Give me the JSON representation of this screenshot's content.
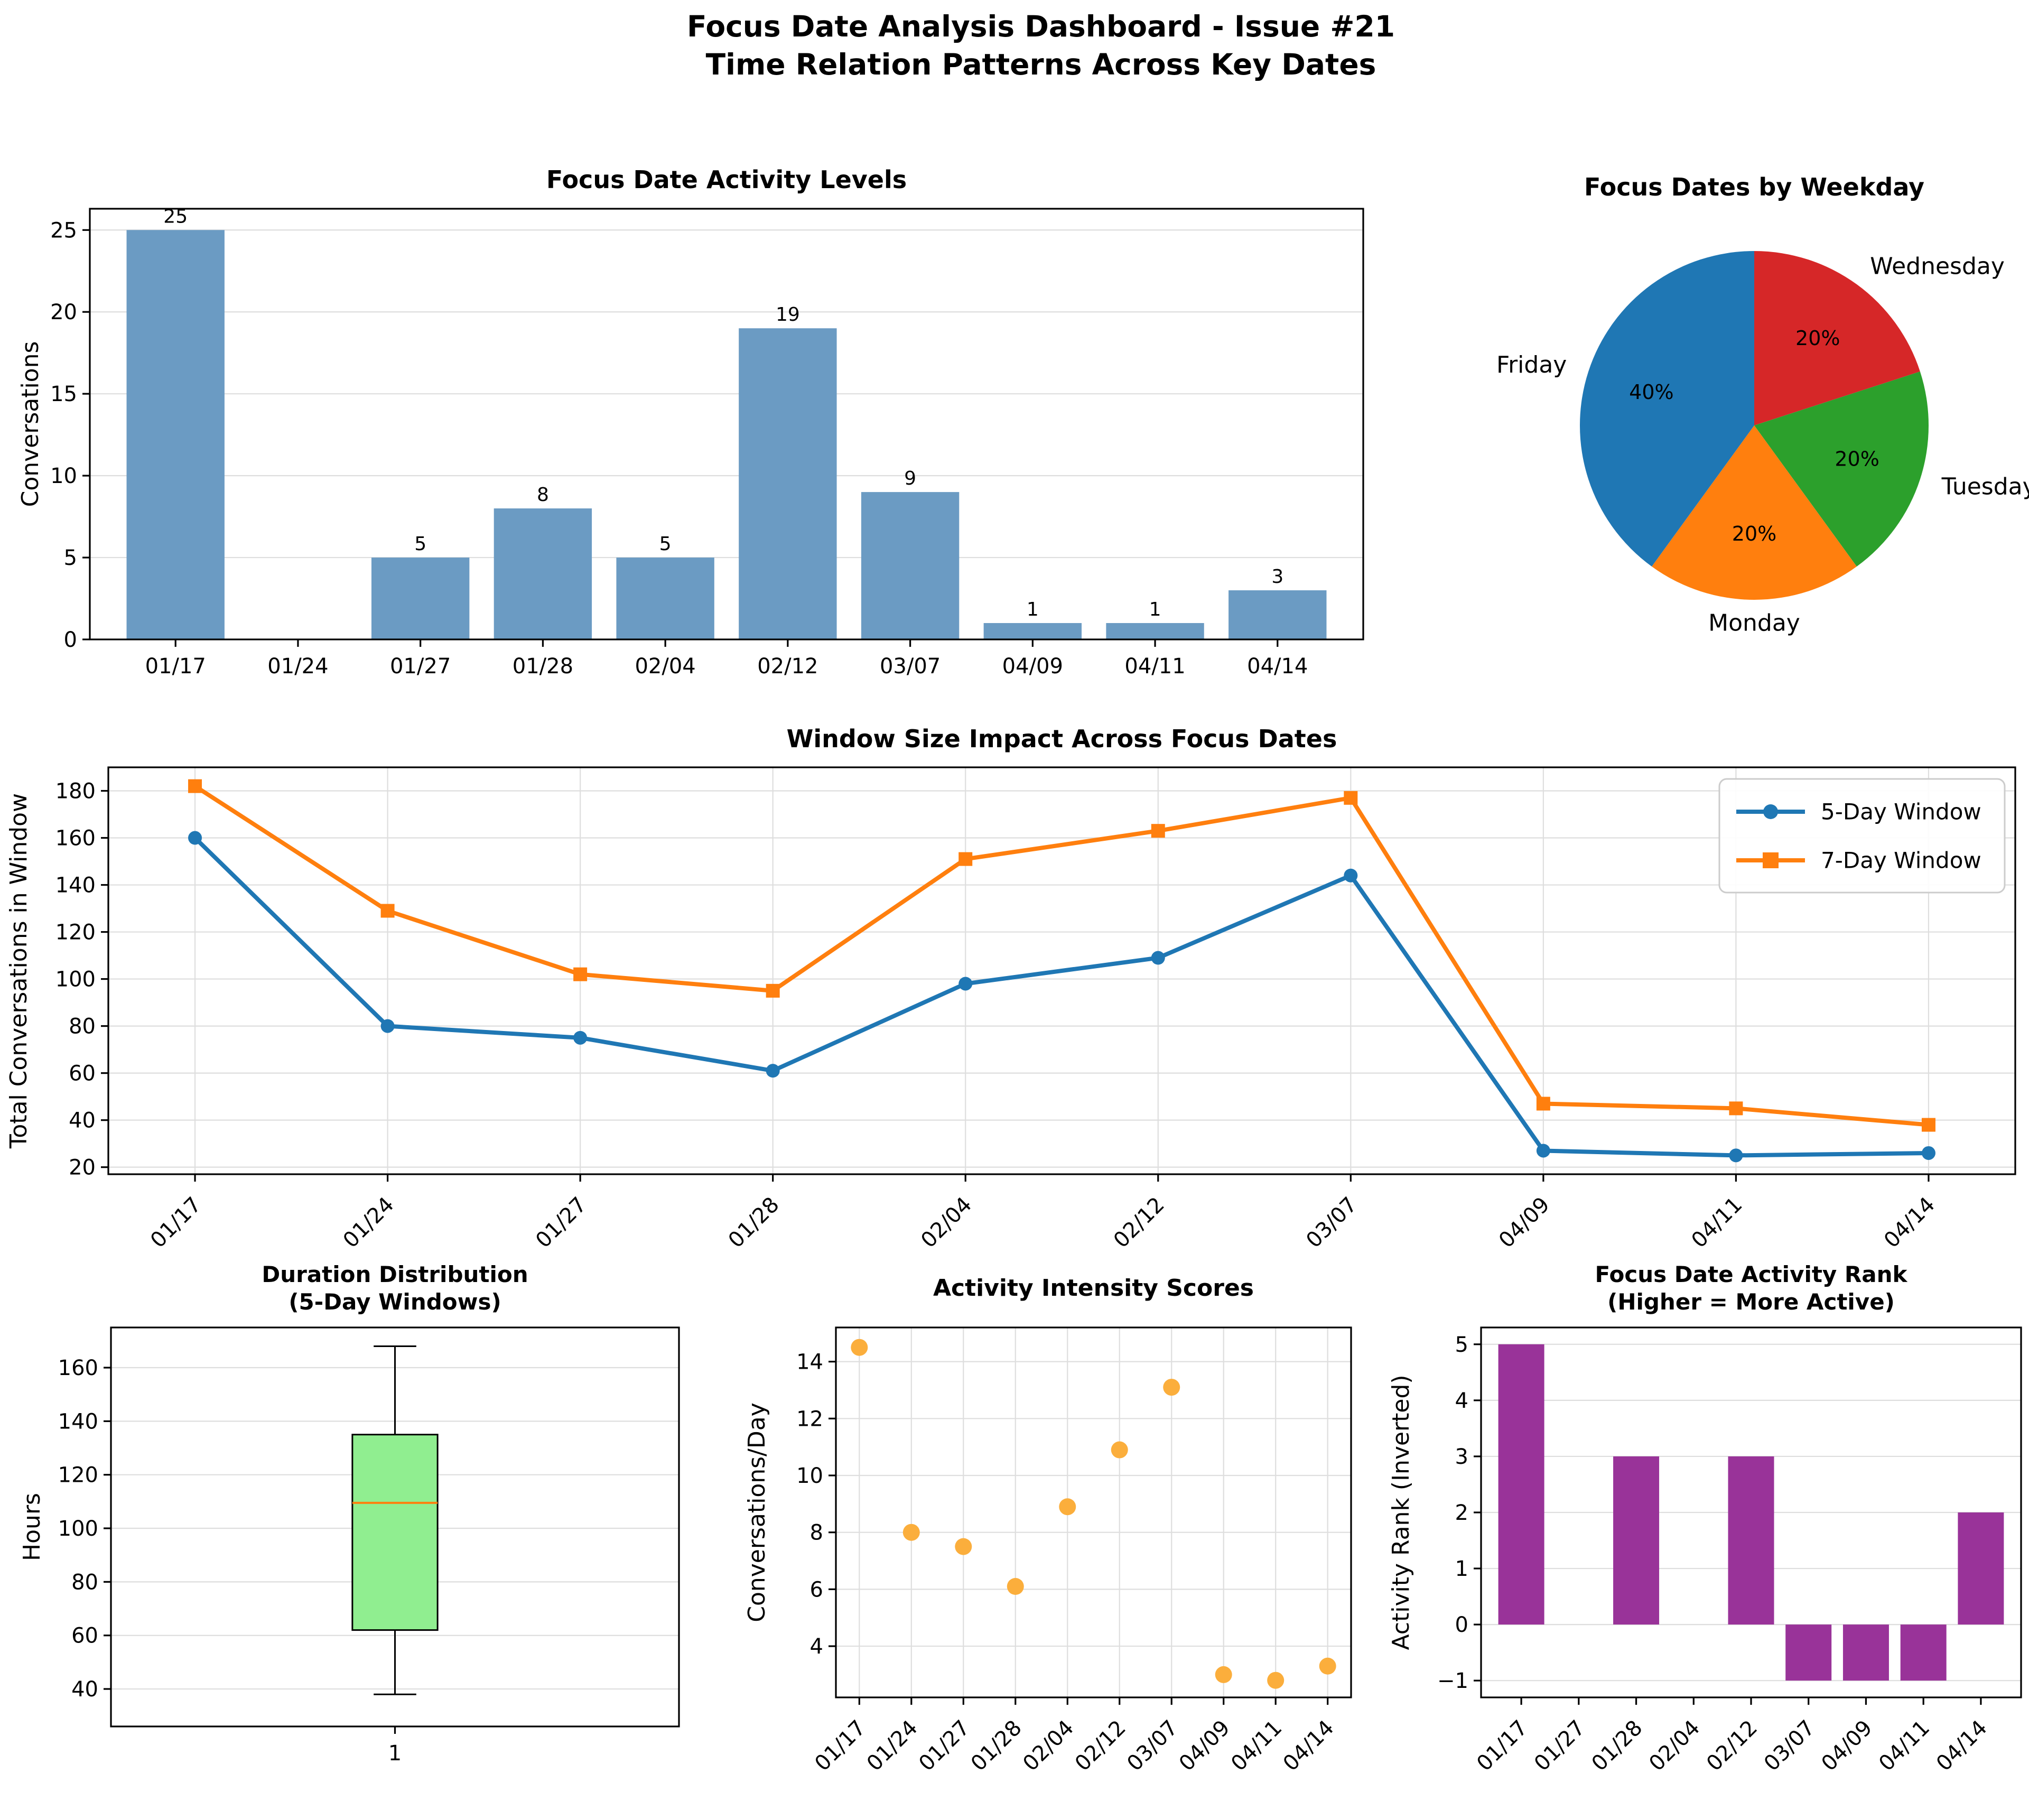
{
  "page_title": {
    "line1": "Focus Date Analysis Dashboard - Issue #21",
    "line2": "Time Relation Patterns Across Key Dates"
  },
  "colors": {
    "grid": "#dedede",
    "spine": "#000000",
    "text": "#000000",
    "bar_blue": "#6b9bc3",
    "bar_purple": "#993399",
    "box_green": "#90ee90",
    "median_orange": "#ff7f0e",
    "scatter_orange": "#fbae3c",
    "line_blue": "#1f77b4",
    "line_orange": "#ff7f0e",
    "pie_red": "#d62728",
    "pie_green": "#2ca02c",
    "pie_orange": "#ff7f0e",
    "pie_blue": "#1f77b4"
  },
  "chart_data": [
    {
      "id": "activity-levels",
      "type": "bar",
      "title": "Focus Date Activity Levels",
      "ylabel": "Conversations",
      "categories": [
        "01/17",
        "01/24",
        "01/27",
        "01/28",
        "02/04",
        "02/12",
        "03/07",
        "04/09",
        "04/11",
        "04/14"
      ],
      "values": [
        25,
        0,
        5,
        8,
        5,
        19,
        9,
        1,
        1,
        3
      ],
      "yticks": [
        0,
        5,
        10,
        15,
        20,
        25
      ],
      "ylim": [
        0,
        26.3
      ],
      "bar_color": "#6b9bc3",
      "show_value_labels": true,
      "rotate_xticks": false,
      "grid": "horizontal"
    },
    {
      "id": "weekday-pie",
      "type": "pie",
      "title": "Focus Dates by Weekday",
      "start_angle_deg": 90,
      "direction": "clockwise",
      "slices": [
        {
          "label": "Wednesday",
          "pct": 20,
          "color": "#d62728"
        },
        {
          "label": "Tuesday",
          "pct": 20,
          "color": "#2ca02c"
        },
        {
          "label": "Monday",
          "pct": 20,
          "color": "#ff7f0e"
        },
        {
          "label": "Friday",
          "pct": 40,
          "color": "#1f77b4"
        }
      ]
    },
    {
      "id": "window-impact",
      "type": "line",
      "title": "Window Size Impact Across Focus Dates",
      "ylabel": "Total Conversations in Window",
      "categories": [
        "01/17",
        "01/24",
        "01/27",
        "01/28",
        "02/04",
        "02/12",
        "03/07",
        "04/09",
        "04/11",
        "04/14"
      ],
      "series": [
        {
          "name": "5-Day Window",
          "color": "#1f77b4",
          "marker": "circle",
          "values": [
            160,
            80,
            75,
            61,
            98,
            109,
            144,
            27,
            25,
            26
          ]
        },
        {
          "name": "7-Day Window",
          "color": "#ff7f0e",
          "marker": "square",
          "values": [
            182,
            129,
            102,
            95,
            151,
            163,
            177,
            47,
            45,
            38
          ]
        }
      ],
      "yticks": [
        20,
        40,
        60,
        80,
        100,
        120,
        140,
        160,
        180
      ],
      "ylim": [
        17,
        190
      ],
      "legend_position": "upper right",
      "rotate_xticks": true,
      "grid": "both"
    },
    {
      "id": "duration-box",
      "type": "box",
      "title_line1": "Duration Distribution",
      "title_line2": "(5-Day Windows)",
      "ylabel": "Hours",
      "category": "1",
      "whisker_low": 38,
      "q1": 62,
      "median": 109.5,
      "q3": 135,
      "whisker_high": 168,
      "yticks": [
        40,
        60,
        80,
        100,
        120,
        140,
        160
      ],
      "ylim": [
        26,
        175
      ],
      "box_fill": "#90ee90",
      "median_color": "#ff7f0e",
      "grid": "horizontal"
    },
    {
      "id": "intensity-scatter",
      "type": "scatter",
      "title": "Activity Intensity Scores",
      "ylabel": "Conversations/Day",
      "categories": [
        "01/17",
        "01/24",
        "01/27",
        "01/28",
        "02/04",
        "02/12",
        "03/07",
        "04/09",
        "04/11",
        "04/14"
      ],
      "values": [
        14.5,
        8.0,
        7.5,
        6.1,
        8.9,
        10.9,
        13.1,
        3.0,
        2.8,
        3.3
      ],
      "yticks": [
        4,
        6,
        8,
        10,
        12,
        14
      ],
      "ylim": [
        2.2,
        15.2
      ],
      "point_color": "#fbae3c",
      "rotate_xticks": true,
      "grid": "both"
    },
    {
      "id": "activity-rank",
      "type": "bar",
      "title_line1": "Focus Date Activity Rank",
      "title_line2": "(Higher = More Active)",
      "ylabel": "Activity Rank (Inverted)",
      "categories": [
        "01/17",
        "01/27",
        "01/28",
        "02/04",
        "02/12",
        "03/07",
        "04/09",
        "04/11",
        "04/14"
      ],
      "values": [
        5,
        0,
        3,
        0,
        3,
        -1,
        -1,
        -1,
        2
      ],
      "yticks": [
        -1,
        0,
        1,
        2,
        3,
        4,
        5
      ],
      "ylim": [
        -1.3,
        5.3
      ],
      "bar_color": "#993399",
      "show_value_labels": false,
      "rotate_xticks": true,
      "grid": "horizontal"
    }
  ]
}
